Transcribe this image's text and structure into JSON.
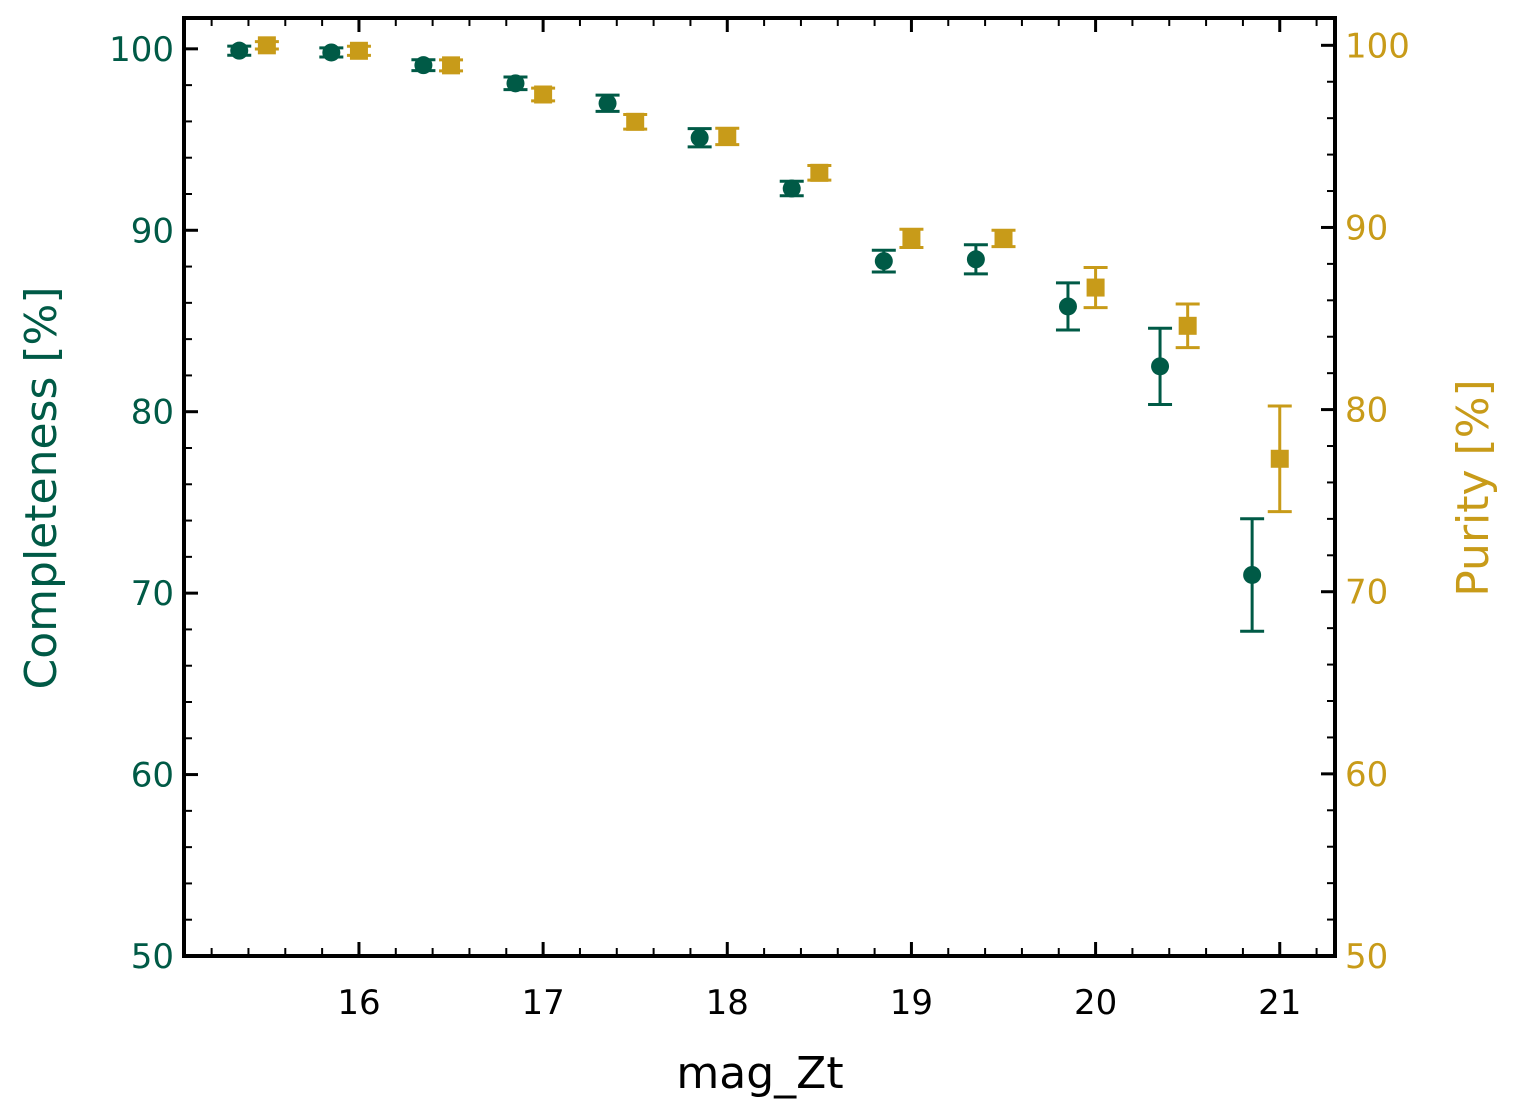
{
  "chart_data": {
    "type": "scatter",
    "title": "",
    "xlabel": "mag_Zt",
    "ylabel_left": "Completeness [%]",
    "ylabel_right": "Purity [%]",
    "xlim": [
      15.05,
      21.3
    ],
    "ylim_left": [
      50,
      101.7
    ],
    "ylim_right": [
      50,
      101.5
    ],
    "x_ticks": [
      16,
      17,
      18,
      19,
      20,
      21
    ],
    "y_ticks_left": [
      50,
      60,
      70,
      80,
      90,
      100
    ],
    "y_ticks_right": [
      50,
      60,
      70,
      80,
      90,
      100
    ],
    "grid": false,
    "legend": "none",
    "series": [
      {
        "axis": "left",
        "marker": "circle",
        "color": "#005a46",
        "x": [
          15.35,
          15.85,
          16.35,
          16.85,
          17.35,
          17.85,
          18.35,
          18.85,
          19.35,
          19.85,
          20.35,
          20.85
        ],
        "y": [
          99.9,
          99.8,
          99.1,
          98.1,
          97.0,
          95.1,
          92.3,
          88.3,
          88.4,
          85.8,
          82.5,
          71.0
        ],
        "yerr": [
          0.25,
          0.25,
          0.3,
          0.35,
          0.45,
          0.5,
          0.4,
          0.6,
          0.8,
          1.3,
          2.1,
          3.1
        ]
      },
      {
        "axis": "right",
        "marker": "square",
        "color": "#c89b19",
        "x": [
          15.5,
          16.0,
          16.5,
          17.0,
          17.5,
          18.0,
          18.5,
          19.0,
          19.5,
          20.0,
          20.5,
          21.0
        ],
        "y": [
          100.0,
          99.7,
          98.9,
          97.3,
          95.8,
          95.0,
          93.0,
          89.4,
          89.4,
          86.7,
          84.6,
          77.3
        ],
        "yerr": [
          0.2,
          0.25,
          0.3,
          0.35,
          0.4,
          0.45,
          0.4,
          0.5,
          0.45,
          1.1,
          1.2,
          2.9
        ]
      }
    ]
  }
}
